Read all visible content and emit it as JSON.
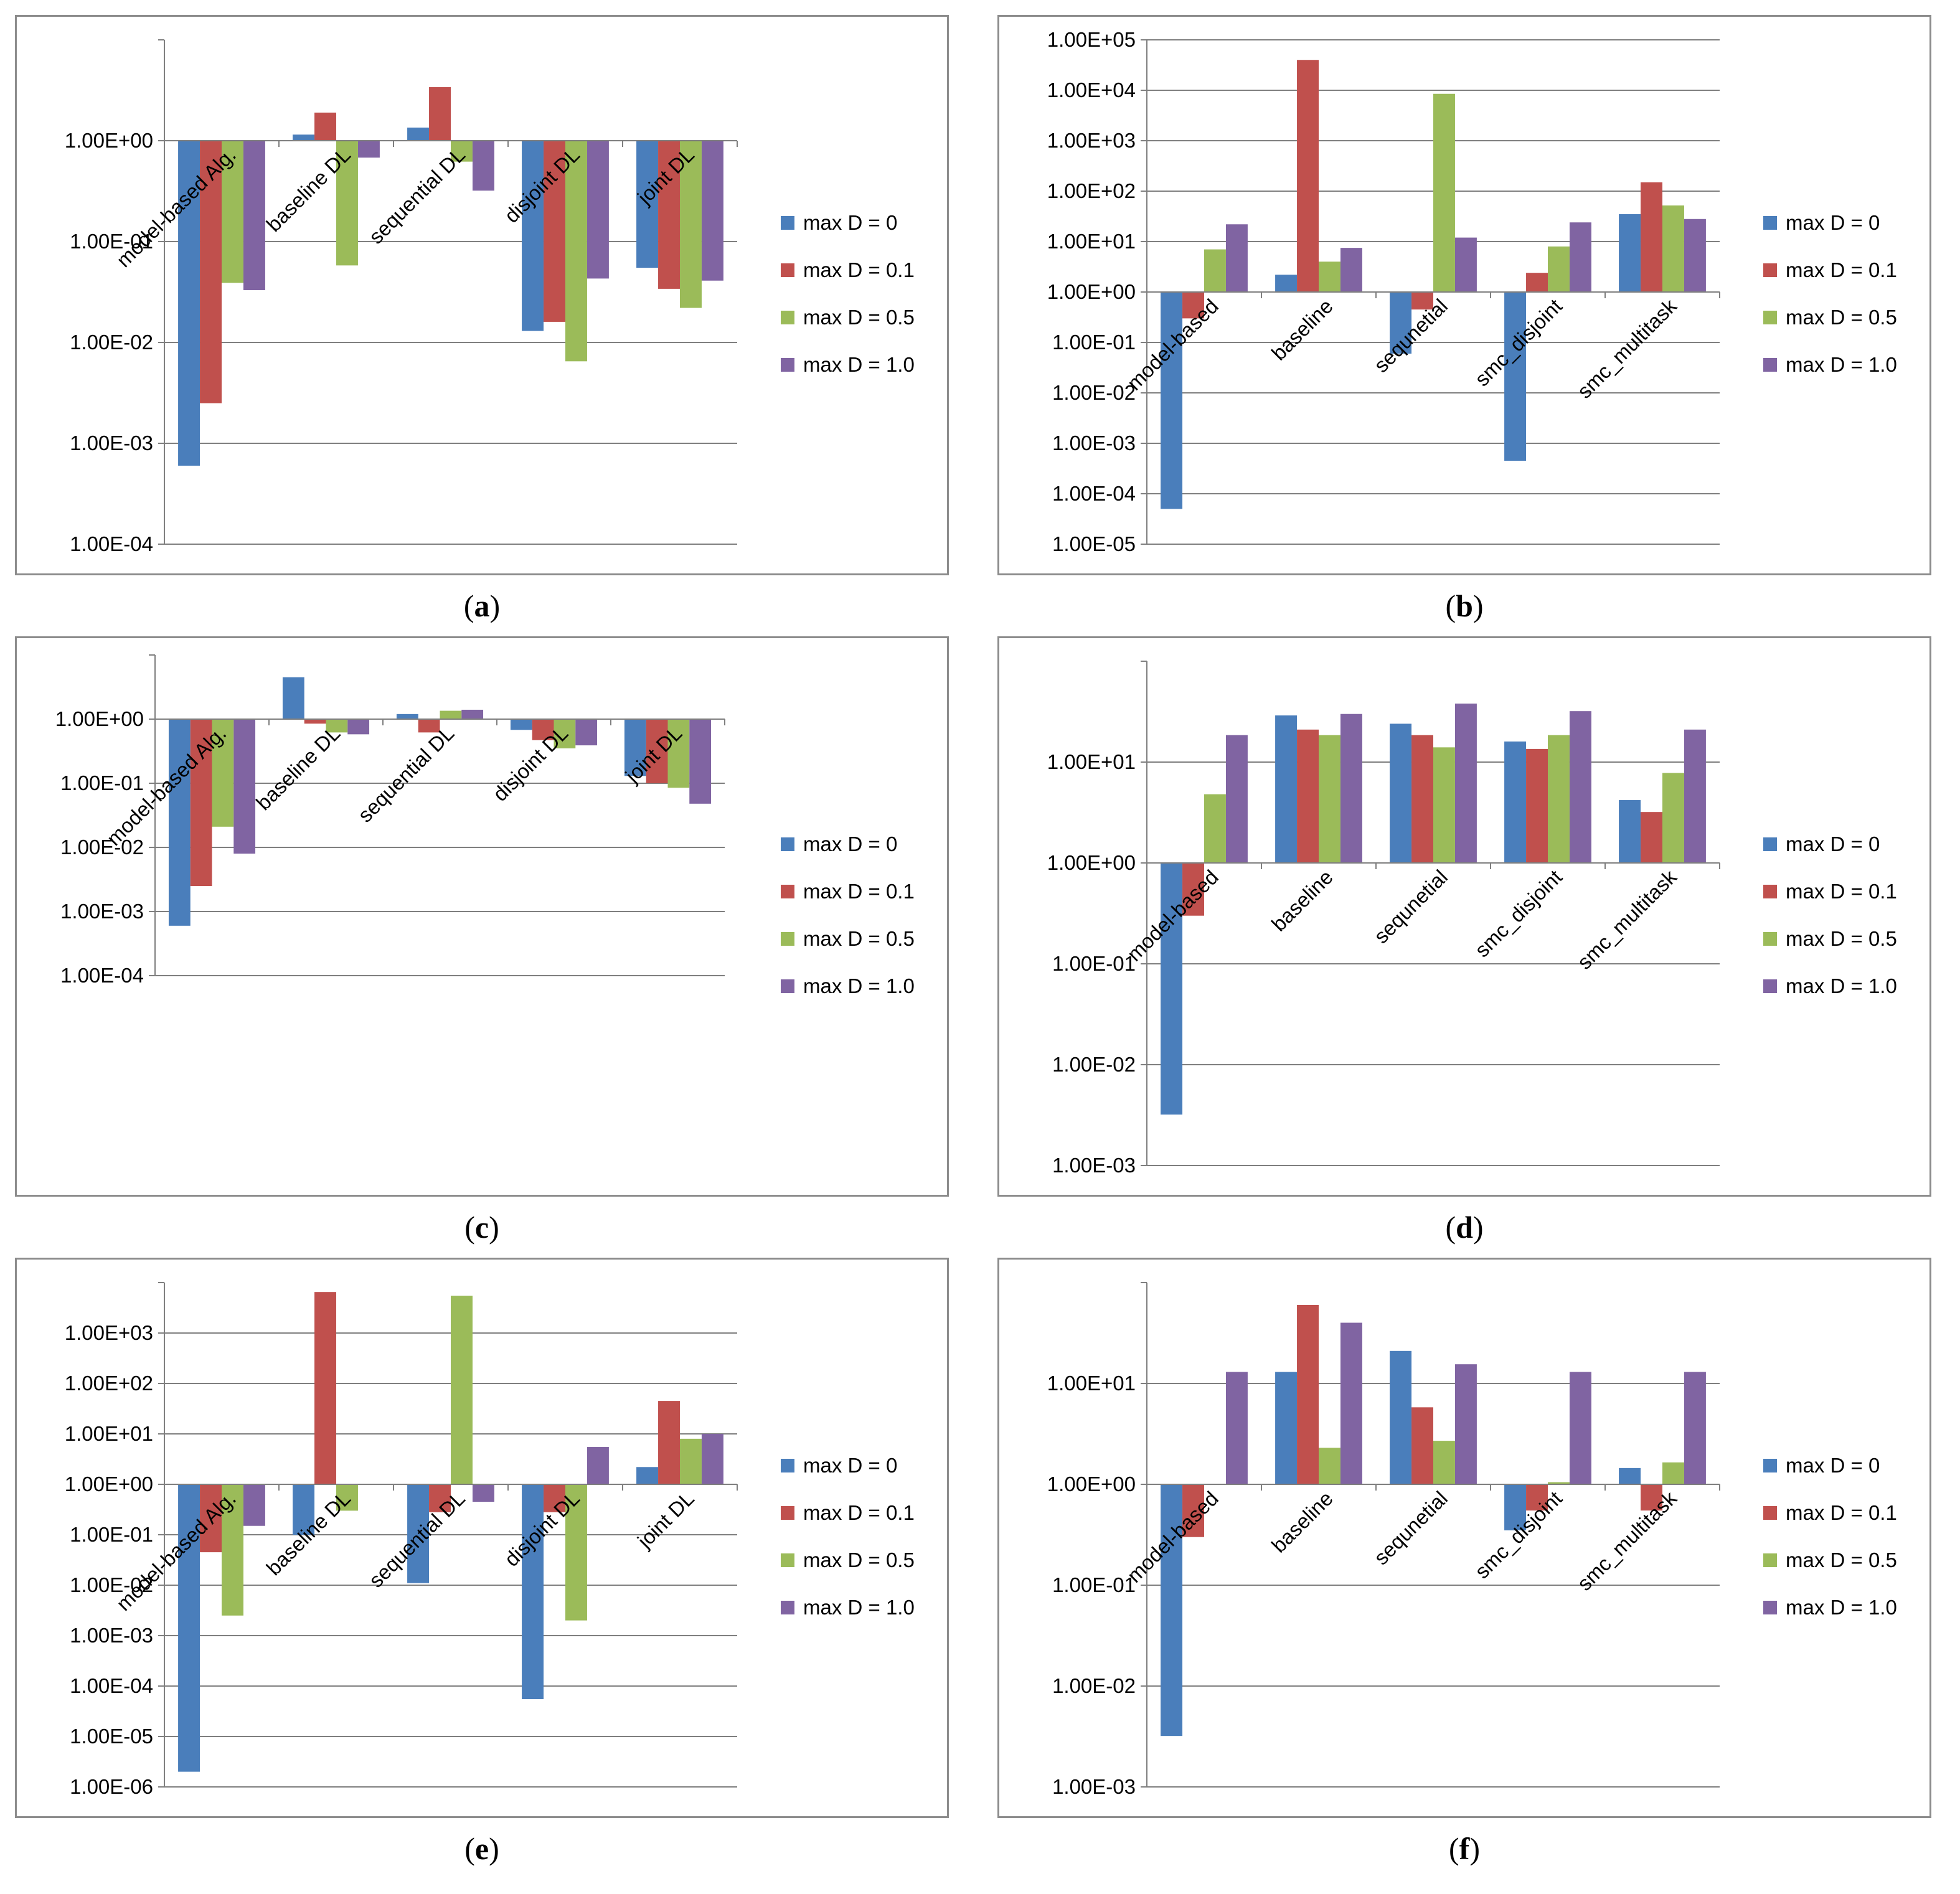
{
  "colors": {
    "s0": "#4a7ebb",
    "s1": "#c0504d",
    "s2": "#9bbb59",
    "s3": "#8064a2",
    "grid": "#7f7f7f",
    "axis": "#7f7f7f"
  },
  "chart_data": [
    {
      "id": "a",
      "type": "bar",
      "log_scale": true,
      "caption_letter": "a",
      "ylim_exp": [
        -4,
        1
      ],
      "tick_exps": [
        -4,
        -3,
        -2,
        -1,
        0
      ],
      "tick_labels": [
        "1.00E-04",
        "1.00E-03",
        "1.00E-02",
        "1.00E-01",
        "1.00E+00"
      ],
      "categories": [
        "model-based Alg.",
        "baseline DL",
        "sequential DL",
        "disjoint DL",
        "joint DL"
      ],
      "series": [
        {
          "name": "max D = 0",
          "values": [
            0.0006,
            1.15,
            1.35,
            0.013,
            0.055
          ]
        },
        {
          "name": "max D = 0.1",
          "values": [
            0.0025,
            1.9,
            3.4,
            0.016,
            0.034
          ]
        },
        {
          "name": "max D = 0.5",
          "values": [
            0.039,
            0.058,
            0.62,
            0.0065,
            0.022
          ]
        },
        {
          "name": "max D = 1.0",
          "values": [
            0.033,
            0.68,
            0.32,
            0.043,
            0.041
          ]
        }
      ]
    },
    {
      "id": "b",
      "type": "bar",
      "log_scale": true,
      "caption_letter": "b",
      "ylim_exp": [
        -5,
        5
      ],
      "tick_exps": [
        -5,
        -4,
        -3,
        -2,
        -1,
        0,
        1,
        2,
        3,
        4,
        5
      ],
      "tick_labels": [
        "1.00E-05",
        "1.00E-04",
        "1.00E-03",
        "1.00E-02",
        "1.00E-01",
        "1.00E+00",
        "1.00E+01",
        "1.00E+02",
        "1.00E+03",
        "1.00E+04",
        "1.00E+05"
      ],
      "categories": [
        "model-based",
        "baseline",
        "sequnetial",
        "smc_disjoint",
        "smc_multitask"
      ],
      "series": [
        {
          "name": "max D = 0",
          "values": [
            5e-05,
            2.2,
            0.06,
            0.00045,
            35
          ]
        },
        {
          "name": "max D = 0.1",
          "values": [
            0.3,
            40000,
            0.45,
            2.4,
            150
          ]
        },
        {
          "name": "max D = 0.5",
          "values": [
            7,
            4,
            8500,
            8,
            52
          ]
        },
        {
          "name": "max D = 1.0",
          "values": [
            22,
            7.5,
            12,
            24,
            28
          ]
        }
      ]
    },
    {
      "id": "c",
      "type": "bar",
      "log_scale": true,
      "caption_letter": "c",
      "ylim_exp": [
        -4,
        1
      ],
      "tick_exps": [
        -4,
        -3,
        -2,
        -1,
        0
      ],
      "tick_labels": [
        "1.00E-04",
        "1.00E-03",
        "1.00E-02",
        "1.00E-01",
        "1.00E+00"
      ],
      "categories": [
        "model-based Alg.",
        "baseline DL",
        "sequential DL",
        "disjoint DL",
        "joint DL"
      ],
      "series": [
        {
          "name": "max D = 0",
          "values": [
            0.0006,
            4.5,
            1.2,
            0.68,
            0.13
          ]
        },
        {
          "name": "max D = 0.1",
          "values": [
            0.0025,
            0.85,
            0.62,
            0.47,
            0.1
          ]
        },
        {
          "name": "max D = 0.5",
          "values": [
            0.021,
            0.62,
            1.35,
            0.35,
            0.085
          ]
        },
        {
          "name": "max D = 1.0",
          "values": [
            0.008,
            0.58,
            1.4,
            0.39,
            0.048
          ]
        }
      ]
    },
    {
      "id": "d",
      "type": "bar",
      "log_scale": true,
      "caption_letter": "d",
      "ylim_exp": [
        -3,
        2
      ],
      "tick_exps": [
        -3,
        -2,
        -1,
        0,
        1
      ],
      "tick_labels": [
        "1.00E-03",
        "1.00E-02",
        "1.00E-01",
        "1.00E+00",
        "1.00E+01"
      ],
      "categories": [
        "model-based",
        "baseline",
        "sequnetial",
        "smc_disjoint",
        "smc_multitask"
      ],
      "series": [
        {
          "name": "max D = 0",
          "values": [
            0.0032,
            29,
            24,
            16,
            4.2
          ]
        },
        {
          "name": "max D = 0.1",
          "values": [
            0.3,
            21,
            18.5,
            13.5,
            3.2
          ]
        },
        {
          "name": "max D = 0.5",
          "values": [
            4.8,
            18.5,
            14,
            18.5,
            7.8
          ]
        },
        {
          "name": "max D = 1.0",
          "values": [
            18.5,
            30,
            38,
            32,
            21
          ]
        }
      ]
    },
    {
      "id": "e",
      "type": "bar",
      "log_scale": true,
      "caption_letter": "e",
      "ylim_exp": [
        -6,
        4
      ],
      "tick_exps": [
        -6,
        -5,
        -4,
        -3,
        -2,
        -1,
        0,
        1,
        2,
        3
      ],
      "tick_labels": [
        "1.00E-06",
        "1.00E-05",
        "1.00E-04",
        "1.00E-03",
        "1.00E-02",
        "1.00E-01",
        "1.00E+00",
        "1.00E+01",
        "1.00E+02",
        "1.00E+03"
      ],
      "categories": [
        "model-based Alg.",
        "baseline DL",
        "sequential DL",
        "disjoint DL",
        "joint DL"
      ],
      "series": [
        {
          "name": "max D = 0",
          "values": [
            2e-06,
            0.1,
            0.011,
            5.5e-05,
            2.2
          ]
        },
        {
          "name": "max D = 0.1",
          "values": [
            0.045,
            6500,
            0.28,
            0.28,
            45
          ]
        },
        {
          "name": "max D = 0.5",
          "values": [
            0.0025,
            0.3,
            5500,
            0.002,
            8
          ]
        },
        {
          "name": "max D = 1.0",
          "values": [
            0.15,
            1,
            0.45,
            5.5,
            10
          ]
        }
      ]
    },
    {
      "id": "f",
      "type": "bar",
      "log_scale": true,
      "caption_letter": "f",
      "ylim_exp": [
        -3,
        2
      ],
      "tick_exps": [
        -3,
        -2,
        -1,
        0,
        1
      ],
      "tick_labels": [
        "1.00E-03",
        "1.00E-02",
        "1.00E-01",
        "1.00E+00",
        "1.00E+01"
      ],
      "categories": [
        "model-based",
        "baseline",
        "sequnetial",
        "smc_disjoint",
        "smc_multitask"
      ],
      "series": [
        {
          "name": "max D = 0",
          "values": [
            0.0032,
            13,
            21,
            0.35,
            1.45
          ]
        },
        {
          "name": "max D = 0.1",
          "values": [
            0.3,
            60,
            5.8,
            0.55,
            0.55
          ]
        },
        {
          "name": "max D = 0.5",
          "values": [
            1,
            2.3,
            2.7,
            1.05,
            1.65
          ]
        },
        {
          "name": "max D = 1.0",
          "values": [
            13,
            40,
            15.5,
            13,
            13
          ]
        }
      ]
    }
  ]
}
